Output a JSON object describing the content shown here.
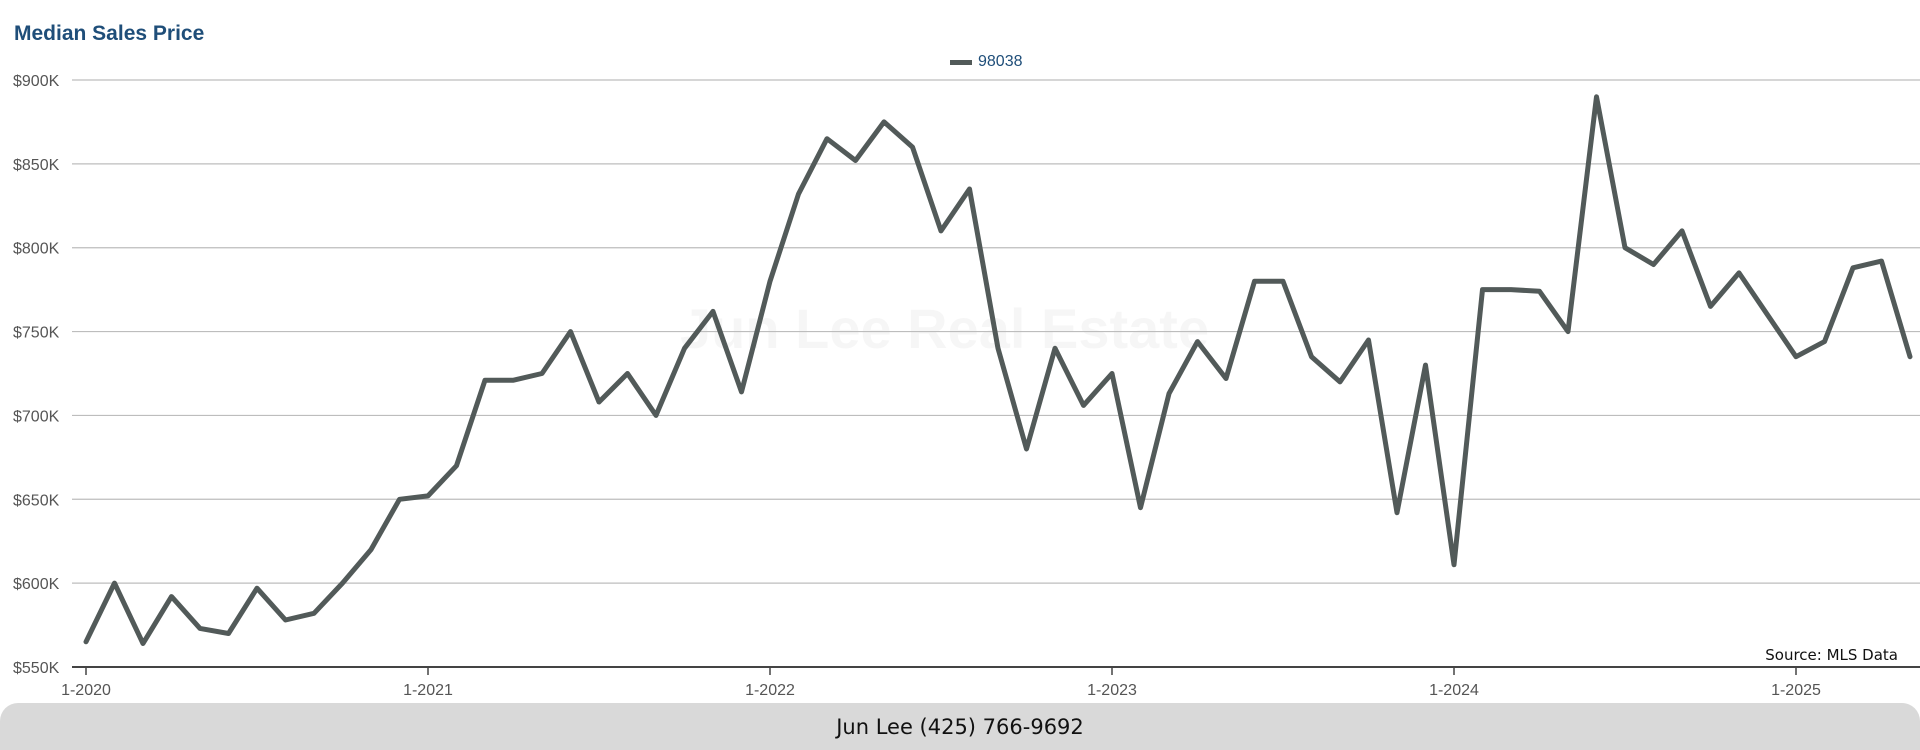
{
  "chart_data": {
    "type": "line",
    "title": "Median Sales Price",
    "x_start": "1-2020",
    "x_interval": "month",
    "xticks": [
      "1-2020",
      "1-2021",
      "1-2022",
      "1-2023",
      "1-2024",
      "1-2025"
    ],
    "yticks": [
      "$550K",
      "$600K",
      "$650K",
      "$700K",
      "$750K",
      "$800K",
      "$850K",
      "$900K"
    ],
    "ylim": [
      550000,
      900000
    ],
    "grid": true,
    "legend_position": "top-center",
    "series": [
      {
        "name": "98038",
        "color": "#525a59",
        "values": [
          565000,
          600000,
          564000,
          592000,
          573000,
          570000,
          597000,
          578000,
          582000,
          600000,
          620000,
          650000,
          652000,
          670000,
          721000,
          721000,
          725000,
          750000,
          708000,
          725000,
          700000,
          740000,
          762000,
          714000,
          780000,
          832000,
          865000,
          852000,
          875000,
          860000,
          810000,
          835000,
          740000,
          680000,
          740000,
          706000,
          725000,
          645000,
          713000,
          744000,
          722000,
          780000,
          780000,
          735000,
          720000,
          745000,
          642000,
          730000,
          611000,
          775000,
          775000,
          774000,
          750000,
          890000,
          800000,
          790000,
          810000,
          765000,
          785000,
          760000,
          735000,
          744000,
          788000,
          792000,
          735000
        ]
      }
    ]
  },
  "legend": {
    "label": "98038"
  },
  "watermark": "Jun Lee Real Estate",
  "source": "Source: MLS Data",
  "footer": {
    "contact": "Jun Lee (425) 766-9692"
  }
}
